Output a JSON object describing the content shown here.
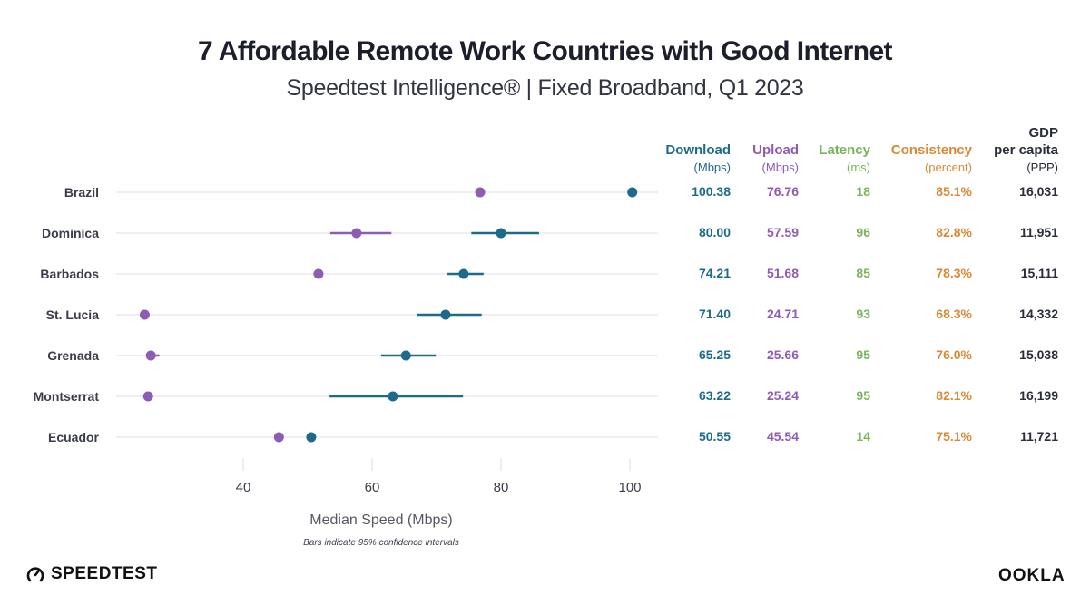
{
  "header": {
    "title": "7 Affordable Remote Work Countries with Good Internet",
    "subtitle": "Speedtest Intelligence® | Fixed Broadband, Q1 2023"
  },
  "colors": {
    "download": "#1d6a8a",
    "upload": "#8e5bb5",
    "latency": "#7ab55c",
    "consistency": "#d88a35",
    "gdp": "#2a2d3a",
    "grid": "#eeeef3"
  },
  "table": {
    "columns": [
      {
        "key": "download",
        "label": "Download",
        "unit": "(Mbps)"
      },
      {
        "key": "upload",
        "label": "Upload",
        "unit": "(Mbps)"
      },
      {
        "key": "latency",
        "label": "Latency",
        "unit": "(ms)"
      },
      {
        "key": "consistency",
        "label": "Consistency",
        "unit": "(percent)"
      },
      {
        "key": "gdp",
        "label": "GDP per capita",
        "label_line1": "GDP",
        "label_line2": "per capita",
        "unit": "(PPP)"
      }
    ],
    "rows": [
      {
        "country": "Brazil",
        "download": "100.38",
        "upload": "76.76",
        "latency": "18",
        "consistency": "85.1%",
        "gdp": "16,031"
      },
      {
        "country": "Dominica",
        "download": "80.00",
        "upload": "57.59",
        "latency": "96",
        "consistency": "82.8%",
        "gdp": "11,951"
      },
      {
        "country": "Barbados",
        "download": "74.21",
        "upload": "51.68",
        "latency": "85",
        "consistency": "78.3%",
        "gdp": "15,111"
      },
      {
        "country": "St. Lucia",
        "download": "71.40",
        "upload": "24.71",
        "latency": "93",
        "consistency": "68.3%",
        "gdp": "14,332"
      },
      {
        "country": "Grenada",
        "download": "65.25",
        "upload": "25.66",
        "latency": "95",
        "consistency": "76.0%",
        "gdp": "15,038"
      },
      {
        "country": "Montserrat",
        "download": "63.22",
        "upload": "25.24",
        "latency": "95",
        "consistency": "82.1%",
        "gdp": "16,199"
      },
      {
        "country": "Ecuador",
        "download": "50.55",
        "upload": "45.54",
        "latency": "14",
        "consistency": "75.1%",
        "gdp": "11,721"
      }
    ]
  },
  "chart_data": {
    "type": "scatter",
    "title": "7 Affordable Remote Work Countries with Good Internet",
    "subtitle": "Speedtest Intelligence® | Fixed Broadband, Q1 2023",
    "xlabel": "Median Speed (Mbps)",
    "ylabel": "",
    "footnote": "Bars indicate 95% confidence intervals",
    "xlim": [
      20.3,
      104.3
    ],
    "xticks": [
      40,
      60,
      80,
      100
    ],
    "grid": "horizontal row lines",
    "categories": [
      "Brazil",
      "Dominica",
      "Barbados",
      "St. Lucia",
      "Grenada",
      "Montserrat",
      "Ecuador"
    ],
    "series": [
      {
        "name": "Download",
        "values": [
          100.38,
          80.0,
          74.21,
          71.4,
          65.25,
          63.22,
          50.55
        ],
        "ci_low": [
          100.38,
          75.4,
          71.7,
          66.9,
          61.4,
          53.4,
          50.55
        ],
        "ci_high": [
          100.38,
          85.9,
          77.3,
          77.0,
          69.9,
          74.1,
          50.55
        ]
      },
      {
        "name": "Upload",
        "values": [
          76.76,
          57.59,
          51.68,
          24.71,
          25.66,
          25.24,
          45.54
        ],
        "ci_low": [
          76.76,
          53.5,
          50.9,
          24.71,
          25.3,
          25.24,
          45.54
        ],
        "ci_high": [
          76.76,
          63.0,
          52.3,
          24.71,
          27.0,
          25.24,
          45.54
        ]
      }
    ]
  },
  "footer": {
    "speedtest_logo": "SPEEDTEST",
    "ookla_logo": "OOKLA",
    "gauge_icon": "speedometer-icon"
  }
}
